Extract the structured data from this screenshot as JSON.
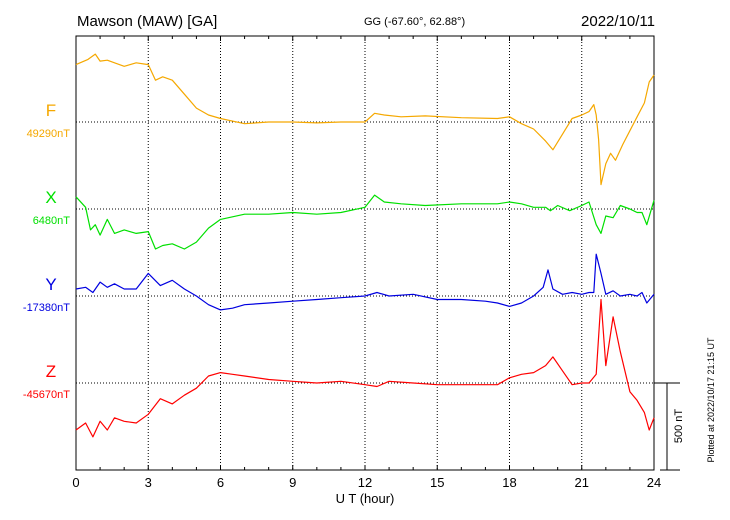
{
  "header": {
    "station": "Mawson (MAW)  [GA]",
    "coords": "GG (-67.60°,  62.88°)",
    "date": "2022/10/11"
  },
  "footer": {
    "plotted": "Plotted at 2022/10/17 21:15 UT"
  },
  "colors": {
    "F": "#f5a800",
    "X": "#00e000",
    "Y": "#0000e0",
    "Z": "#ff0000"
  },
  "chart_data": {
    "type": "line",
    "xlabel": "U T (hour)",
    "xlim": [
      0,
      24
    ],
    "xticks": [
      0,
      3,
      6,
      9,
      12,
      15,
      18,
      21,
      24
    ],
    "scale_bar": {
      "label": "500 nT",
      "nT": 500
    },
    "series": [
      {
        "name": "F",
        "baseline_label": "49290nT",
        "baseline_nT": 49290,
        "x": [
          0,
          0.5,
          0.8,
          1.0,
          1.3,
          1.6,
          2.0,
          2.5,
          3.0,
          3.3,
          3.6,
          4.0,
          4.5,
          5.0,
          5.5,
          6.0,
          7.0,
          8.0,
          9.0,
          10.0,
          11.0,
          12.0,
          12.4,
          12.8,
          13.5,
          14.5,
          16.0,
          17.5,
          18.0,
          18.5,
          19.0,
          19.5,
          19.8,
          20.2,
          20.6,
          21.0,
          21.3,
          21.5,
          21.6,
          21.7,
          21.8,
          22.0,
          22.2,
          22.4,
          22.7,
          23.0,
          23.3,
          23.6,
          23.8,
          24.0
        ],
        "y": [
          330,
          360,
          390,
          350,
          355,
          340,
          320,
          340,
          330,
          240,
          260,
          240,
          160,
          80,
          40,
          20,
          -10,
          0,
          0,
          -5,
          0,
          0,
          50,
          40,
          30,
          35,
          25,
          20,
          30,
          -10,
          -40,
          -110,
          -160,
          -70,
          20,
          40,
          60,
          100,
          40,
          -100,
          -360,
          -240,
          -180,
          -220,
          -130,
          -50,
          30,
          110,
          230,
          270
        ]
      },
      {
        "name": "X",
        "baseline_label": "6480nT",
        "baseline_nT": 6480,
        "x": [
          0,
          0.4,
          0.6,
          0.8,
          1.0,
          1.3,
          1.6,
          2.0,
          2.5,
          3.0,
          3.3,
          3.6,
          4.0,
          4.5,
          5.0,
          5.5,
          6.0,
          7.0,
          8.0,
          9.0,
          10.0,
          11.0,
          12.0,
          12.4,
          12.8,
          13.5,
          14.5,
          16.0,
          17.5,
          18.0,
          18.5,
          19.0,
          19.5,
          19.7,
          20.0,
          20.5,
          21.0,
          21.3,
          21.6,
          21.8,
          22.0,
          22.3,
          22.6,
          23.0,
          23.3,
          23.5,
          23.7,
          24.0
        ],
        "y": [
          70,
          10,
          -120,
          -90,
          -150,
          -60,
          -140,
          -120,
          -140,
          -130,
          -230,
          -210,
          -200,
          -230,
          -190,
          -110,
          -60,
          -30,
          -30,
          -20,
          -30,
          -20,
          10,
          80,
          40,
          30,
          20,
          30,
          30,
          40,
          30,
          10,
          10,
          -10,
          20,
          -10,
          20,
          40,
          -90,
          -140,
          -40,
          -50,
          20,
          0,
          -20,
          -20,
          -90,
          50
        ]
      },
      {
        "name": "Y",
        "baseline_label": "-17380nT",
        "baseline_nT": -17380,
        "x": [
          0,
          0.4,
          0.7,
          1.0,
          1.3,
          1.6,
          2.0,
          2.5,
          3.0,
          3.5,
          4.0,
          4.5,
          5.0,
          5.5,
          6.0,
          6.5,
          7.0,
          8.0,
          9.0,
          10.0,
          11.0,
          12.0,
          12.5,
          13.0,
          14.0,
          15.0,
          16.0,
          17.0,
          17.5,
          18.0,
          18.5,
          19.0,
          19.4,
          19.6,
          19.8,
          20.2,
          20.6,
          21.0,
          21.3,
          21.5,
          21.6,
          21.8,
          22.0,
          22.3,
          22.6,
          23.0,
          23.3,
          23.5,
          23.7,
          24.0
        ],
        "y": [
          40,
          50,
          20,
          80,
          50,
          70,
          40,
          40,
          130,
          60,
          90,
          40,
          0,
          -50,
          -80,
          -70,
          -50,
          -40,
          -30,
          -20,
          -10,
          0,
          20,
          0,
          10,
          -20,
          -20,
          -30,
          -40,
          -60,
          -40,
          0,
          50,
          150,
          40,
          10,
          20,
          10,
          20,
          20,
          240,
          130,
          10,
          30,
          0,
          10,
          0,
          20,
          -40,
          10
        ]
      },
      {
        "name": "Z",
        "baseline_label": "-45670nT",
        "baseline_nT": -45670,
        "x": [
          0,
          0.4,
          0.7,
          1.0,
          1.3,
          1.6,
          2.0,
          2.5,
          3.0,
          3.5,
          4.0,
          4.5,
          5.0,
          5.5,
          6.0,
          6.5,
          7.0,
          8.0,
          9.0,
          10.0,
          11.0,
          12.0,
          12.5,
          13.0,
          14.0,
          15.0,
          16.0,
          17.0,
          17.5,
          18.0,
          18.5,
          19.0,
          19.5,
          19.8,
          20.2,
          20.6,
          21.0,
          21.3,
          21.6,
          21.8,
          22.0,
          22.3,
          22.6,
          23.0,
          23.3,
          23.6,
          23.8,
          24.0
        ],
        "y": [
          -270,
          -230,
          -310,
          -220,
          -270,
          -200,
          -220,
          -230,
          -180,
          -90,
          -120,
          -70,
          -30,
          40,
          60,
          50,
          40,
          20,
          10,
          0,
          10,
          -10,
          -20,
          10,
          0,
          -10,
          -10,
          -10,
          -10,
          30,
          50,
          60,
          100,
          150,
          70,
          -10,
          0,
          0,
          50,
          480,
          100,
          380,
          180,
          -50,
          -100,
          -170,
          -270,
          -200
        ]
      }
    ]
  }
}
